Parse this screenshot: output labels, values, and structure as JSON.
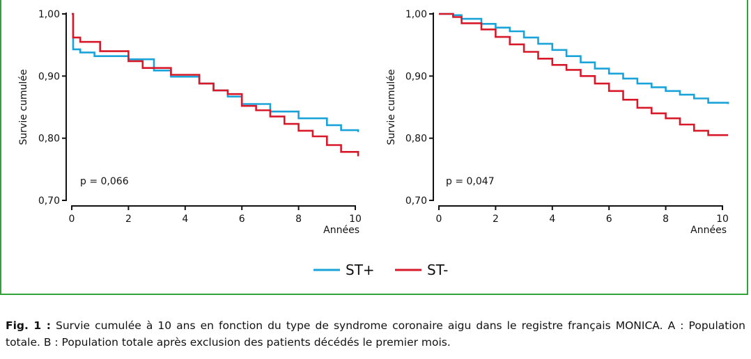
{
  "chart_data": [
    {
      "type": "line",
      "panel": "A",
      "ylabel": "Survie cumulée",
      "xlabel": "Années",
      "xlim": [
        0,
        10
      ],
      "ylim": [
        0.7,
        1.0
      ],
      "xticks": [
        "0",
        "2",
        "4",
        "6",
        "8",
        "10"
      ],
      "yticks": [
        "0,70",
        "0,80",
        "0,90",
        "1,00"
      ],
      "annotation": "p = 0,066",
      "grid": false,
      "series": [
        {
          "name": "ST+",
          "color": "#1aa3d9",
          "x": [
            0,
            0.05,
            0.3,
            0.8,
            2,
            2.9,
            3.5,
            4.5,
            5,
            5.5,
            6,
            7,
            8,
            9,
            9.5,
            10.1
          ],
          "y": [
            1.0,
            0.943,
            0.938,
            0.932,
            0.927,
            0.909,
            0.899,
            0.888,
            0.877,
            0.867,
            0.855,
            0.843,
            0.832,
            0.821,
            0.813,
            0.81
          ]
        },
        {
          "name": "ST-",
          "color": "#d7192a",
          "x": [
            0,
            0.05,
            0.3,
            1.0,
            2,
            2.5,
            3.5,
            4.5,
            5,
            5.5,
            6,
            6.5,
            7,
            7.5,
            8,
            8.5,
            9,
            9.5,
            10.1
          ],
          "y": [
            1.0,
            0.962,
            0.955,
            0.94,
            0.924,
            0.913,
            0.902,
            0.888,
            0.877,
            0.871,
            0.852,
            0.845,
            0.835,
            0.823,
            0.812,
            0.803,
            0.789,
            0.778,
            0.771
          ]
        }
      ]
    },
    {
      "type": "line",
      "panel": "B",
      "ylabel": "Survie cumulée",
      "xlabel": "Années",
      "xlim": [
        0,
        10
      ],
      "ylim": [
        0.7,
        1.0
      ],
      "xticks": [
        "0",
        "2",
        "4",
        "6",
        "8",
        "10"
      ],
      "yticks": [
        "0,70",
        "0,80",
        "0,90",
        "1,00"
      ],
      "annotation": "p = 0,047",
      "grid": false,
      "series": [
        {
          "name": "ST+",
          "color": "#1aa3d9",
          "x": [
            0,
            0.5,
            0.8,
            1.5,
            2,
            2.5,
            3,
            3.5,
            4,
            4.5,
            5,
            5.5,
            6,
            6.5,
            7,
            7.5,
            8,
            8.5,
            9,
            9.5,
            10.2
          ],
          "y": [
            1.0,
            0.998,
            0.992,
            0.984,
            0.978,
            0.972,
            0.962,
            0.952,
            0.942,
            0.932,
            0.922,
            0.912,
            0.904,
            0.896,
            0.888,
            0.882,
            0.876,
            0.87,
            0.864,
            0.857,
            0.855
          ]
        },
        {
          "name": "ST-",
          "color": "#d7192a",
          "x": [
            0,
            0.5,
            0.8,
            1.5,
            2,
            2.5,
            3,
            3.5,
            4,
            4.5,
            5,
            5.5,
            6,
            6.5,
            7,
            7.5,
            8,
            8.5,
            9,
            9.5,
            10.2
          ],
          "y": [
            1.0,
            0.995,
            0.985,
            0.975,
            0.963,
            0.951,
            0.939,
            0.928,
            0.918,
            0.91,
            0.9,
            0.888,
            0.876,
            0.862,
            0.849,
            0.84,
            0.832,
            0.822,
            0.812,
            0.805,
            0.805
          ]
        }
      ]
    }
  ],
  "legend": [
    {
      "label": "ST+",
      "color": "#1aa3d9"
    },
    {
      "label": "ST-",
      "color": "#d7192a"
    }
  ],
  "caption": {
    "lead": "Fig. 1 :",
    "text": " Survie cumulée à 10 ans en fonction du type de syndrome coronaire aigu dans le registre français MONICA. A : Population totale. B : Population totale après exclusion des patients décédés le premier mois."
  }
}
